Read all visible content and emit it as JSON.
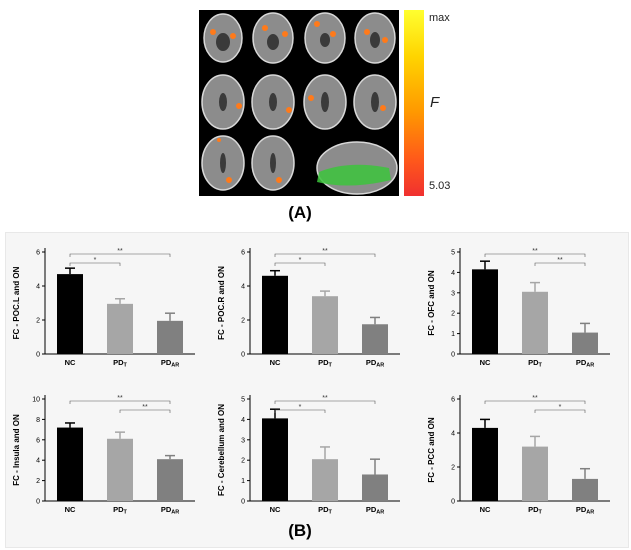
{
  "figure": {
    "panel_a_label": "(A)",
    "panel_b_label": "(B)",
    "colorbar": {
      "max_label": "max",
      "stat_label": "F",
      "min_label": "5.03"
    }
  },
  "chart_data": [
    {
      "type": "bar",
      "ylabel": "FC - POC.L and ON",
      "categories": [
        "NC",
        "PDT",
        "PDAR"
      ],
      "category_main": [
        "NC",
        "PD",
        "PD"
      ],
      "category_sub": [
        "",
        "T",
        "AR"
      ],
      "values": [
        4.7,
        2.95,
        1.95
      ],
      "errors": [
        0.35,
        0.3,
        0.45
      ],
      "ylim": [
        0,
        6
      ],
      "yticks": [
        0,
        2,
        4,
        6
      ],
      "colors": [
        "#000000",
        "#a6a6a6",
        "#808080"
      ],
      "significance": [
        {
          "from": 0,
          "to": 1,
          "label": "*"
        },
        {
          "from": 0,
          "to": 2,
          "label": "**"
        }
      ]
    },
    {
      "type": "bar",
      "ylabel": "FC - POC.R and ON",
      "categories": [
        "NC",
        "PDT",
        "PDAR"
      ],
      "category_main": [
        "NC",
        "PD",
        "PD"
      ],
      "category_sub": [
        "",
        "T",
        "AR"
      ],
      "values": [
        4.6,
        3.4,
        1.75
      ],
      "errors": [
        0.3,
        0.3,
        0.4
      ],
      "ylim": [
        0,
        6
      ],
      "yticks": [
        0,
        2,
        4,
        6
      ],
      "colors": [
        "#000000",
        "#a6a6a6",
        "#808080"
      ],
      "significance": [
        {
          "from": 0,
          "to": 1,
          "label": "*"
        },
        {
          "from": 0,
          "to": 2,
          "label": "**"
        }
      ]
    },
    {
      "type": "bar",
      "ylabel": "FC - OFC and ON",
      "categories": [
        "NC",
        "PDT",
        "PDAR"
      ],
      "category_main": [
        "NC",
        "PD",
        "PD"
      ],
      "category_sub": [
        "",
        "T",
        "AR"
      ],
      "values": [
        4.15,
        3.05,
        1.05
      ],
      "errors": [
        0.4,
        0.45,
        0.45
      ],
      "ylim": [
        0,
        5
      ],
      "yticks": [
        0,
        1,
        2,
        3,
        4,
        5
      ],
      "colors": [
        "#000000",
        "#a6a6a6",
        "#808080"
      ],
      "significance": [
        {
          "from": 0,
          "to": 2,
          "label": "**"
        },
        {
          "from": 1,
          "to": 2,
          "label": "**"
        }
      ]
    },
    {
      "type": "bar",
      "ylabel": "FC - Insula and ON",
      "categories": [
        "NC",
        "PDT",
        "PDAR"
      ],
      "category_main": [
        "NC",
        "PD",
        "PD"
      ],
      "category_sub": [
        "",
        "T",
        "AR"
      ],
      "values": [
        7.2,
        6.1,
        4.1
      ],
      "errors": [
        0.45,
        0.65,
        0.35
      ],
      "ylim": [
        0,
        10
      ],
      "yticks": [
        0,
        2,
        4,
        6,
        8,
        10
      ],
      "colors": [
        "#000000",
        "#a6a6a6",
        "#808080"
      ],
      "significance": [
        {
          "from": 0,
          "to": 2,
          "label": "**"
        },
        {
          "from": 1,
          "to": 2,
          "label": "**"
        }
      ]
    },
    {
      "type": "bar",
      "ylabel": "FC - Cerebellum and ON",
      "categories": [
        "NC",
        "PDT",
        "PDAR"
      ],
      "category_main": [
        "NC",
        "PD",
        "PD"
      ],
      "category_sub": [
        "",
        "T",
        "AR"
      ],
      "values": [
        4.05,
        2.05,
        1.3
      ],
      "errors": [
        0.45,
        0.6,
        0.75
      ],
      "ylim": [
        0,
        5
      ],
      "yticks": [
        0,
        1,
        2,
        3,
        4,
        5
      ],
      "colors": [
        "#000000",
        "#a6a6a6",
        "#808080"
      ],
      "significance": [
        {
          "from": 0,
          "to": 1,
          "label": "*"
        },
        {
          "from": 0,
          "to": 2,
          "label": "**"
        }
      ]
    },
    {
      "type": "bar",
      "ylabel": "FC - PCC and ON",
      "categories": [
        "NC",
        "PDT",
        "PDAR"
      ],
      "category_main": [
        "NC",
        "PD",
        "PD"
      ],
      "category_sub": [
        "",
        "T",
        "AR"
      ],
      "values": [
        4.3,
        3.2,
        1.3
      ],
      "errors": [
        0.5,
        0.6,
        0.6
      ],
      "ylim": [
        0,
        6
      ],
      "yticks": [
        0,
        2,
        4,
        6
      ],
      "colors": [
        "#000000",
        "#a6a6a6",
        "#808080"
      ],
      "significance": [
        {
          "from": 0,
          "to": 2,
          "label": "**"
        },
        {
          "from": 1,
          "to": 2,
          "label": "*"
        }
      ]
    }
  ]
}
